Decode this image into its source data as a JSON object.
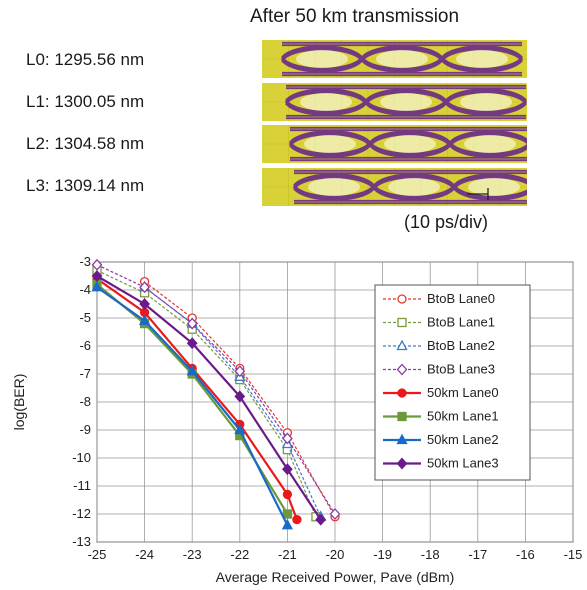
{
  "eye_diagram": {
    "title": "After 50 km transmission",
    "labels": [
      "L0: 1295.56 nm",
      "L1: 1300.05 nm",
      "L2: 1304.58 nm",
      "L3: 1309.14 nm"
    ],
    "scale_label": "(10 ps/div)",
    "colors": {
      "background": "#d8d238",
      "eye": "#6a2a8a",
      "grid": "#ffffff"
    }
  },
  "chart_data": {
    "type": "line",
    "xlabel": "Average Received Power, Pave (dBm)",
    "ylabel": "log(BER)",
    "xlim": [
      -25,
      -15
    ],
    "ylim": [
      -13,
      -3
    ],
    "xticks": [
      -25,
      -24,
      -23,
      -22,
      -21,
      -20,
      -19,
      -18,
      -17,
      -16,
      -15
    ],
    "yticks": [
      -3,
      -4,
      -5,
      -6,
      -7,
      -8,
      -9,
      -10,
      -11,
      -12,
      -13
    ],
    "grid": true,
    "legend_position": "top-right",
    "series": [
      {
        "name": "BtoB Lane0",
        "color": "#e8352a",
        "marker": "circle",
        "filled": false,
        "dashed": true,
        "x": [
          -24,
          -23,
          -22,
          -21,
          -20
        ],
        "y": [
          -3.7,
          -5.0,
          -6.8,
          -9.1,
          -12.1
        ]
      },
      {
        "name": "BtoB Lane1",
        "color": "#7a9a3a",
        "marker": "square",
        "filled": false,
        "dashed": true,
        "x": [
          -25,
          -24,
          -23,
          -22,
          -21,
          -20.4
        ],
        "y": [
          -3.3,
          -4.1,
          -5.4,
          -7.2,
          -9.7,
          -12.1
        ]
      },
      {
        "name": "BtoB Lane2",
        "color": "#3a7ac8",
        "marker": "triangle",
        "filled": false,
        "dashed": true,
        "x": [
          -24,
          -23,
          -22,
          -21,
          -20.3
        ],
        "y": [
          -3.9,
          -5.2,
          -7.1,
          -9.5,
          -12.1
        ]
      },
      {
        "name": "BtoB Lane3",
        "color": "#8a3aa8",
        "marker": "diamond",
        "filled": false,
        "dashed": true,
        "x": [
          -25,
          -24,
          -23,
          -22,
          -21,
          -20
        ],
        "y": [
          -3.1,
          -3.9,
          -5.2,
          -6.9,
          -9.3,
          -12.0
        ]
      },
      {
        "name": "50km Lane0",
        "color": "#e81a1a",
        "marker": "circle",
        "filled": true,
        "dashed": false,
        "x": [
          -25,
          -24,
          -23,
          -22,
          -21,
          -20.8
        ],
        "y": [
          -3.6,
          -4.8,
          -6.8,
          -8.8,
          -11.3,
          -12.2
        ]
      },
      {
        "name": "50km Lane1",
        "color": "#6a9a3a",
        "marker": "square",
        "filled": true,
        "dashed": false,
        "x": [
          -25,
          -24,
          -23,
          -22,
          -21
        ],
        "y": [
          -3.8,
          -5.2,
          -7.0,
          -9.2,
          -12.0
        ]
      },
      {
        "name": "50km Lane2",
        "color": "#1a6ac8",
        "marker": "triangle",
        "filled": true,
        "dashed": false,
        "x": [
          -25,
          -24,
          -23,
          -22,
          -21
        ],
        "y": [
          -3.9,
          -5.1,
          -6.9,
          -9.0,
          -12.4
        ]
      },
      {
        "name": "50km Lane3",
        "color": "#6a1a8a",
        "marker": "diamond",
        "filled": true,
        "dashed": false,
        "x": [
          -25,
          -24,
          -23,
          -22,
          -21,
          -20.3
        ],
        "y": [
          -3.5,
          -4.5,
          -5.9,
          -7.8,
          -10.4,
          -12.2
        ]
      }
    ]
  }
}
